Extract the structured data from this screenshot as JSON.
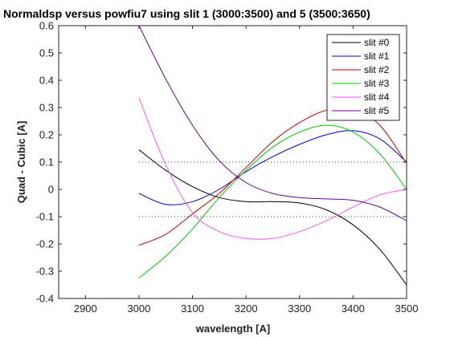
{
  "chart_data": {
    "type": "line",
    "title": "Normaldsp versus powfiu7 using slit 1 (3000:3500) and 5 (3500:3650)",
    "xlabel": "wavelength [A]",
    "ylabel": "Quad - Cubic  [A]",
    "xlim": [
      2850,
      3500
    ],
    "ylim": [
      -0.4,
      0.6
    ],
    "xticks": [
      2900,
      3000,
      3100,
      3200,
      3300,
      3400,
      3500
    ],
    "xtick_labels": [
      "2900",
      "3000",
      "3100",
      "3200",
      "3300",
      "3400",
      "3500"
    ],
    "yticks": [
      -0.4,
      -0.3,
      -0.2,
      -0.1,
      0,
      0.1,
      0.2,
      0.3,
      0.4,
      0.5,
      0.6
    ],
    "ytick_labels": [
      "-0.4",
      "-0.3",
      "-0.2",
      "-0.1",
      "0",
      "0.1",
      "0.2",
      "0.3",
      "0.4",
      "0.5",
      "0.6"
    ],
    "legend_position": "top-right",
    "x": [
      3000,
      3050,
      3100,
      3150,
      3200,
      3250,
      3300,
      3350,
      3400,
      3450,
      3500
    ],
    "series": [
      {
        "name": "slit #0",
        "color": "#000000",
        "values": [
          0.145,
          0.07,
          0.01,
          -0.03,
          -0.045,
          -0.045,
          -0.05,
          -0.075,
          -0.13,
          -0.22,
          -0.35
        ]
      },
      {
        "name": "slit #1",
        "color": "#0000cc",
        "values": [
          -0.015,
          -0.055,
          -0.045,
          0.0,
          0.065,
          0.12,
          0.165,
          0.2,
          0.215,
          0.185,
          0.1
        ]
      },
      {
        "name": "slit #2",
        "color": "#cc0000",
        "values": [
          -0.205,
          -0.165,
          -0.09,
          -0.015,
          0.08,
          0.175,
          0.245,
          0.29,
          0.295,
          0.235,
          0.095
        ]
      },
      {
        "name": "slit #3",
        "color": "#00cc00",
        "values": [
          -0.325,
          -0.245,
          -0.145,
          -0.03,
          0.07,
          0.155,
          0.21,
          0.235,
          0.21,
          0.13,
          0.0
        ]
      },
      {
        "name": "slit #4",
        "color": "#ff55ff",
        "values": [
          0.335,
          0.09,
          -0.085,
          -0.155,
          -0.18,
          -0.18,
          -0.155,
          -0.115,
          -0.065,
          -0.02,
          0.0
        ]
      },
      {
        "name": "slit #5",
        "color": "#660099",
        "values": [
          0.6,
          0.405,
          0.235,
          0.105,
          0.025,
          -0.015,
          -0.03,
          -0.035,
          -0.04,
          -0.065,
          -0.115
        ]
      }
    ],
    "reference_lines": [
      {
        "y": 0.1,
        "x_range": [
          3000,
          3500
        ],
        "color": "#cc0000",
        "style": "dotted"
      },
      {
        "y": -0.1,
        "x_range": [
          3000,
          3500
        ],
        "color": "#cc0000",
        "style": "dotted"
      }
    ]
  }
}
